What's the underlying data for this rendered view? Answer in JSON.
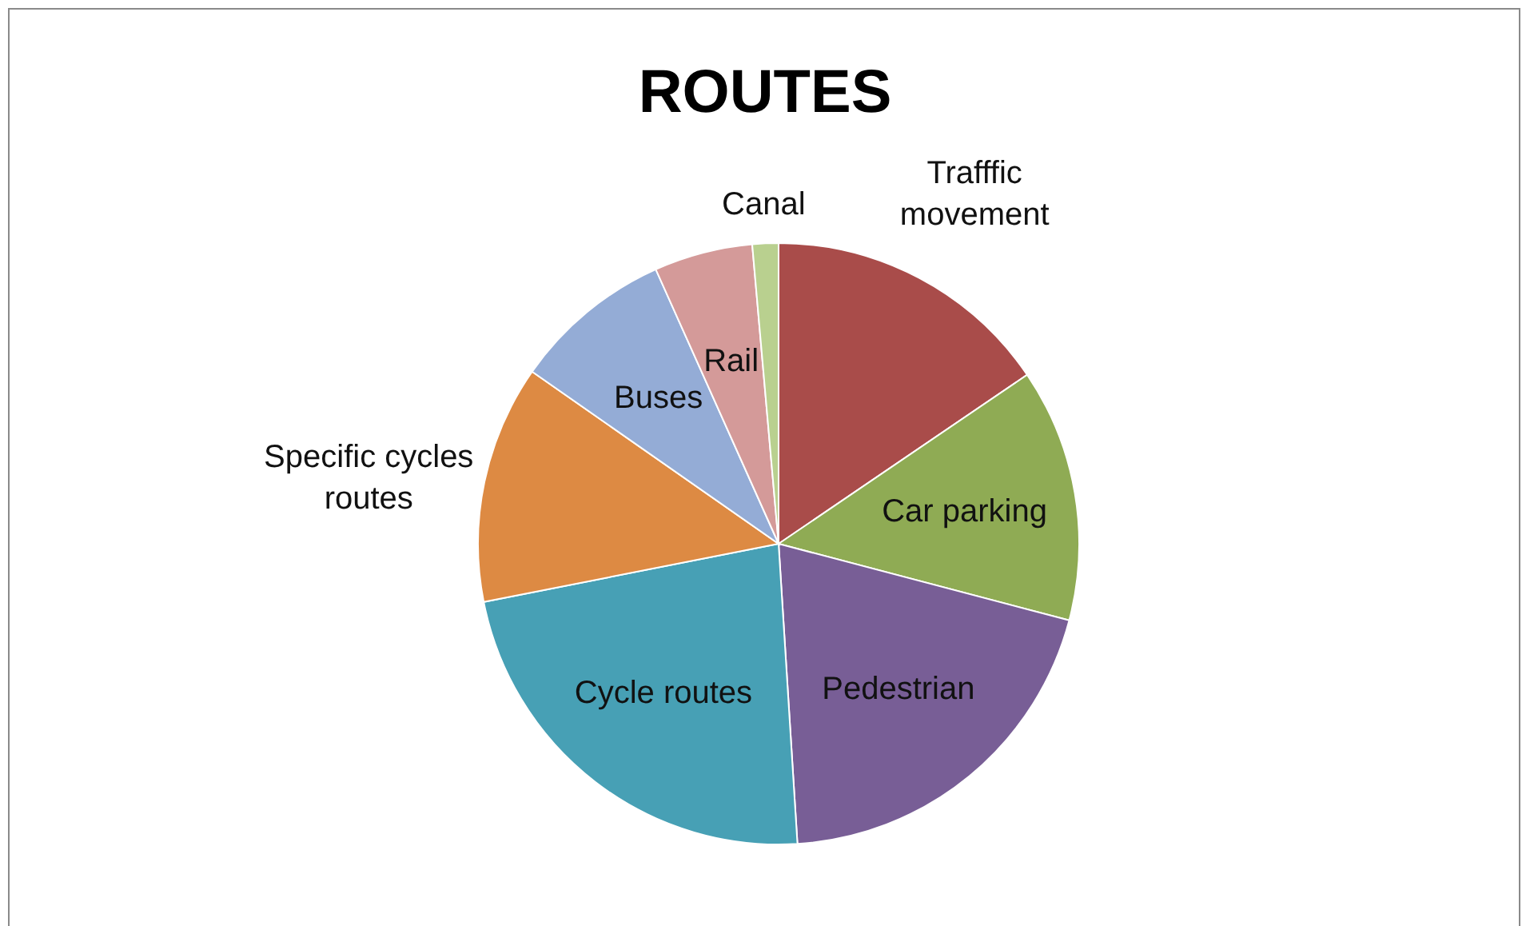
{
  "chart_data": {
    "type": "pie",
    "title": "ROUTES",
    "categories": [
      "Trafffic movement",
      "Car parking",
      "Pedestrian",
      "Cycle routes",
      "Specific cycles routes",
      "Buses",
      "Rail",
      "Canal"
    ],
    "values": [
      15.5,
      13.6,
      19.9,
      22.9,
      12.8,
      8.6,
      5.3,
      1.4
    ],
    "colors": [
      "#a94c4a",
      "#8fab54",
      "#785e96",
      "#47a0b5",
      "#dd8a43",
      "#94acd6",
      "#d49a99",
      "#b9d08f"
    ],
    "legend": false
  }
}
